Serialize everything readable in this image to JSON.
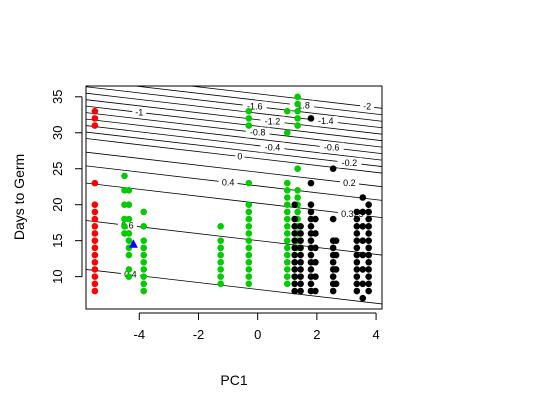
{
  "chart_data": {
    "type": "scatter",
    "xlabel": "PC1",
    "ylabel": "Days to Germ",
    "xlim": [
      -5.8,
      4.2
    ],
    "ylim": [
      5.5,
      36.5
    ],
    "x_ticks": [
      -4,
      -2,
      0,
      2,
      4
    ],
    "y_ticks": [
      10,
      15,
      20,
      25,
      30,
      35
    ],
    "box": true,
    "grid": false,
    "colors": {
      "red": "#ff0000",
      "green": "#00cc00",
      "black": "#000000",
      "blue": "#0000ff",
      "contour": "#000000"
    },
    "contours": [
      {
        "label": "-2",
        "y_left": 38.2,
        "slope": -0.48,
        "label_x": 3.7
      },
      {
        "label": "-1.8",
        "y_left": 37.3,
        "slope": -0.48,
        "label_x": 1.5
      },
      {
        "label": "-1.6",
        "y_left": 36.4,
        "slope": -0.48,
        "label_x": -0.1
      },
      {
        "label": "-1.4",
        "y_left": 35.5,
        "slope": -0.48,
        "label_x": 2.3
      },
      {
        "label": "-1.2",
        "y_left": 34.6,
        "slope": -0.48,
        "label_x": 0.5
      },
      {
        "label": "-1",
        "y_left": 33.7,
        "slope": -0.48,
        "label_x": -4.0
      },
      {
        "label": "-0.8",
        "y_left": 32.8,
        "slope": -0.48,
        "label_x": 0.0
      },
      {
        "label": "-0.6",
        "y_left": 31.9,
        "slope": -0.48,
        "label_x": 2.5
      },
      {
        "label": "-0.4",
        "y_left": 31.0,
        "slope": -0.48,
        "label_x": 0.5
      },
      {
        "label": "-0.2",
        "y_left": 30.1,
        "slope": -0.48,
        "label_x": 3.1
      },
      {
        "label": "0",
        "y_left": 29.2,
        "slope": -0.48,
        "label_x": -0.6
      },
      {
        "label": "0.2",
        "y_left": 27.3,
        "slope": -0.48,
        "label_x": 3.1
      },
      {
        "label": "0.4",
        "y_left": 25.4,
        "slope": -0.48,
        "label_x": -1.0
      },
      {
        "label": "0.325",
        "y_left": 23.0,
        "slope": -0.48,
        "label_x": 3.2
      },
      {
        "label": "0.6",
        "y_left": 17.8,
        "slope": -0.48,
        "label_x": -4.4
      },
      {
        "label": "0.4",
        "y_left": 11.0,
        "slope": -0.48,
        "label_x": -4.3
      }
    ],
    "series": [
      {
        "color": "red",
        "shape": "circle",
        "points": [
          {
            "x": -5.5,
            "y": [
              33,
              32,
              31,
              23,
              20,
              19,
              18,
              17,
              16,
              15,
              14,
              13,
              12,
              11,
              10,
              9,
              8
            ]
          }
        ]
      },
      {
        "color": "green",
        "shape": "circle",
        "points": [
          {
            "x": -4.5,
            "y": [
              24,
              22,
              20,
              18,
              17,
              16
            ]
          },
          {
            "x": -4.35,
            "y": [
              22,
              20,
              18,
              16,
              15,
              14,
              13,
              11,
              10
            ]
          },
          {
            "x": -3.85,
            "y": [
              19,
              17,
              15,
              14,
              13,
              12,
              11,
              10,
              9,
              8
            ]
          },
          {
            "x": -1.25,
            "y": [
              17,
              15,
              14,
              13,
              12,
              11,
              10,
              9
            ]
          },
          {
            "x": -0.3,
            "y": [
              33,
              32,
              31,
              23,
              20,
              19,
              18,
              17,
              16,
              15,
              14,
              13,
              12,
              11,
              10,
              9
            ]
          },
          {
            "x": 1.0,
            "y": [
              33,
              30,
              23,
              22,
              21,
              20,
              19,
              18,
              17,
              16,
              15,
              14,
              13,
              12,
              11,
              10,
              9
            ]
          },
          {
            "x": 1.35,
            "y": [
              35,
              34,
              33,
              32,
              31,
              25,
              22,
              21,
              20,
              19,
              18,
              17,
              16,
              15,
              14
            ]
          }
        ]
      },
      {
        "color": "black",
        "shape": "circle",
        "points": [
          {
            "x": 1.25,
            "y": [
              20,
              18,
              17,
              16,
              15,
              14,
              13,
              12,
              11,
              10,
              9,
              8
            ]
          },
          {
            "x": 1.45,
            "y": [
              17,
              16,
              15,
              14,
              13,
              12,
              11,
              10,
              9,
              8
            ]
          },
          {
            "x": 1.8,
            "y": [
              32,
              23,
              20,
              19,
              18,
              17,
              16,
              15,
              14,
              13,
              12,
              11,
              10,
              9,
              8
            ]
          },
          {
            "x": 1.95,
            "y": [
              18,
              16,
              14,
              12,
              10,
              8
            ]
          },
          {
            "x": 2.55,
            "y": [
              25,
              18,
              15,
              14,
              13,
              12,
              11,
              10,
              9,
              8
            ]
          },
          {
            "x": 2.65,
            "y": [
              15,
              13,
              11,
              9
            ]
          },
          {
            "x": 3.35,
            "y": [
              19,
              18,
              17,
              16,
              15,
              14,
              13,
              12,
              11,
              10,
              9,
              8
            ]
          },
          {
            "x": 3.55,
            "y": [
              21,
              19,
              17,
              15,
              13,
              11,
              9,
              7
            ]
          },
          {
            "x": 3.75,
            "y": [
              20,
              19,
              18,
              17,
              16,
              15,
              14,
              13,
              12,
              11,
              10,
              9,
              8
            ]
          }
        ]
      },
      {
        "color": "blue",
        "shape": "triangle",
        "points": [
          {
            "x": -4.2,
            "y": [
              14.5
            ]
          }
        ]
      }
    ]
  }
}
